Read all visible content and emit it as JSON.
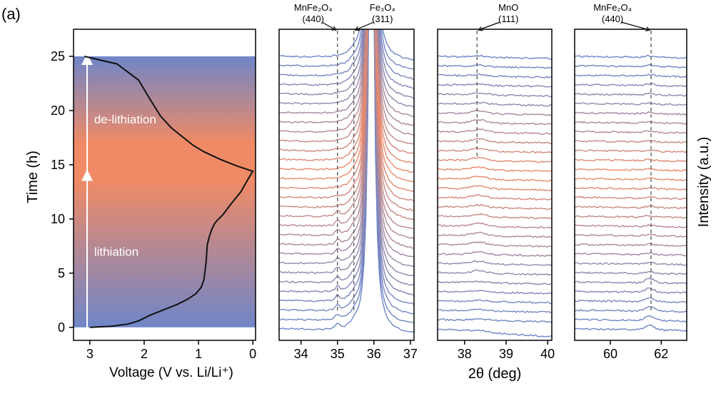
{
  "panel_label": "(a)",
  "colors": {
    "blue": "#6f86c8",
    "orange": "#f08a66",
    "curve": "#111111",
    "arrow": "#ffffff",
    "ref_line": "#555555"
  },
  "chart_data": [
    {
      "type": "line",
      "title": "",
      "xlabel": "Voltage (V vs. Li/Li⁺)",
      "ylabel": "Time (h)",
      "xlim": [
        3.3,
        -0.05
      ],
      "ylim": [
        -1.2,
        27.5
      ],
      "x_reversed": true,
      "xticks": [
        3,
        2,
        1,
        0
      ],
      "yticks": [
        0,
        5,
        10,
        15,
        20,
        25
      ],
      "background_gradient": [
        {
          "time": 0,
          "color": "blue"
        },
        {
          "time": 14.4,
          "color": "orange"
        },
        {
          "time": 25,
          "color": "blue"
        }
      ],
      "annotations": [
        {
          "text": "de-lithiation",
          "x": 3.0,
          "y": 18.8
        },
        {
          "text": "lithiation",
          "x": 3.0,
          "y": 6.6
        }
      ],
      "arrows": [
        {
          "x": 3.05,
          "y_from": 0.0,
          "y_to": 14.3
        },
        {
          "x": 3.05,
          "y_from": 14.3,
          "y_to": 25.0
        }
      ],
      "series": [
        {
          "x": [
            3.0,
            2.6,
            2.3,
            2.1,
            1.9,
            1.6,
            1.4,
            1.2,
            1.05,
            0.95,
            0.9,
            0.88,
            0.86,
            0.85,
            0.84,
            0.8,
            0.75,
            0.7,
            0.65,
            0.55,
            0.4,
            0.22,
            0.12,
            0.05,
            0.0,
            0.3,
            0.6,
            0.9,
            1.1,
            1.3,
            1.5,
            1.7,
            1.9,
            2.1,
            2.5,
            3.1
          ],
          "y": [
            0.0,
            0.1,
            0.3,
            0.6,
            1.1,
            1.7,
            2.1,
            2.6,
            3.1,
            3.7,
            4.4,
            5.2,
            6.0,
            6.8,
            7.6,
            8.4,
            9.1,
            9.6,
            9.9,
            10.4,
            11.4,
            12.5,
            13.4,
            14.0,
            14.4,
            14.9,
            15.5,
            16.2,
            16.8,
            17.6,
            18.4,
            19.5,
            21.1,
            22.8,
            24.3,
            25.0
          ]
        }
      ]
    },
    {
      "type": "line",
      "xlabel": "",
      "ylabel": "",
      "xlim": [
        33.4,
        37.1
      ],
      "xticks": [
        34,
        35,
        36,
        37
      ],
      "n_scans": 30,
      "reflections": [
        {
          "name": "MnFe₂O₄",
          "hkl": "(440)",
          "two_theta": 35.0
        },
        {
          "name": "Fe₃O₄",
          "hkl": "(311)",
          "two_theta": 35.45
        }
      ],
      "peak_center": 35.93
    },
    {
      "type": "line",
      "xlabel": "2θ (deg)",
      "xlim": [
        37.35,
        40.1
      ],
      "xticks": [
        38,
        39,
        40
      ],
      "n_scans": 30,
      "reflections": [
        {
          "name": "MnO",
          "hkl": "(111)",
          "two_theta": 38.3
        }
      ]
    },
    {
      "type": "line",
      "xlabel": "",
      "ylabel": "Intensity (a.u.)",
      "xlim": [
        58.6,
        63.0
      ],
      "xticks": [
        60,
        62
      ],
      "n_scans": 30,
      "reflections": [
        {
          "name": "MnFe₂O₄",
          "hkl": "(440)",
          "two_theta": 61.6
        }
      ]
    }
  ]
}
